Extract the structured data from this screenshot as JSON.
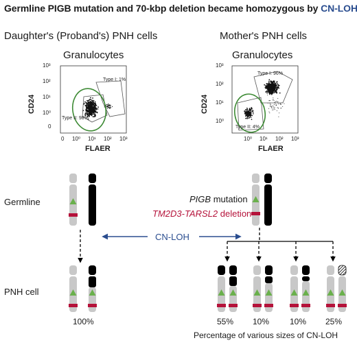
{
  "title": {
    "main": "Germline PIGB mutation and 70-kbp deletion became homozygous by ",
    "highlight": "CN-LOH"
  },
  "left_panel": {
    "header": "Daughter's (Proband's) PNH cells",
    "subheader": "Granulocytes",
    "plot": {
      "ylabel": "CD24",
      "xlabel": "FLAER",
      "yticks": [
        "10³",
        "10²",
        "10¹",
        "10⁰",
        "0"
      ],
      "xticks": [
        "0",
        "10⁰",
        "10¹",
        "10²",
        "10³"
      ],
      "gate_type1": "Type I: 1%",
      "gate_type2": "Type II: 98%"
    }
  },
  "right_panel": {
    "header": "Mother's PNH cells",
    "subheader": "Granulocytes",
    "plot": {
      "ylabel": "CD24",
      "xlabel": "FLAER",
      "yticks": [
        "10³",
        "10²",
        "10¹",
        "10⁰"
      ],
      "xticks": [
        "10⁰",
        "10¹",
        "10²",
        "10³"
      ],
      "gate_type1": "Type I: 96%",
      "gate_type2": "Type II: 4%"
    }
  },
  "rows": {
    "germline": "Germline",
    "pnh_cell": "PNH cell"
  },
  "legend": {
    "mutation": "PIGB",
    "mutation_suffix": " mutation",
    "deletion": "TM2D3-TARSL2",
    "deletion_suffix": " deletion"
  },
  "arrow_label": "CN-LOH",
  "percentages": {
    "daughter": "100%",
    "mother": [
      "55%",
      "10%",
      "10%",
      "25%"
    ]
  },
  "footnote": "Percentage of various sizes of CN-LOH",
  "colors": {
    "accent_blue": "#2a4d8f",
    "marker_green": "#6ab04c",
    "marker_red": "#b5123a",
    "chrom_gray": "#c8c8c8",
    "gate_green": "#3d8a34"
  }
}
